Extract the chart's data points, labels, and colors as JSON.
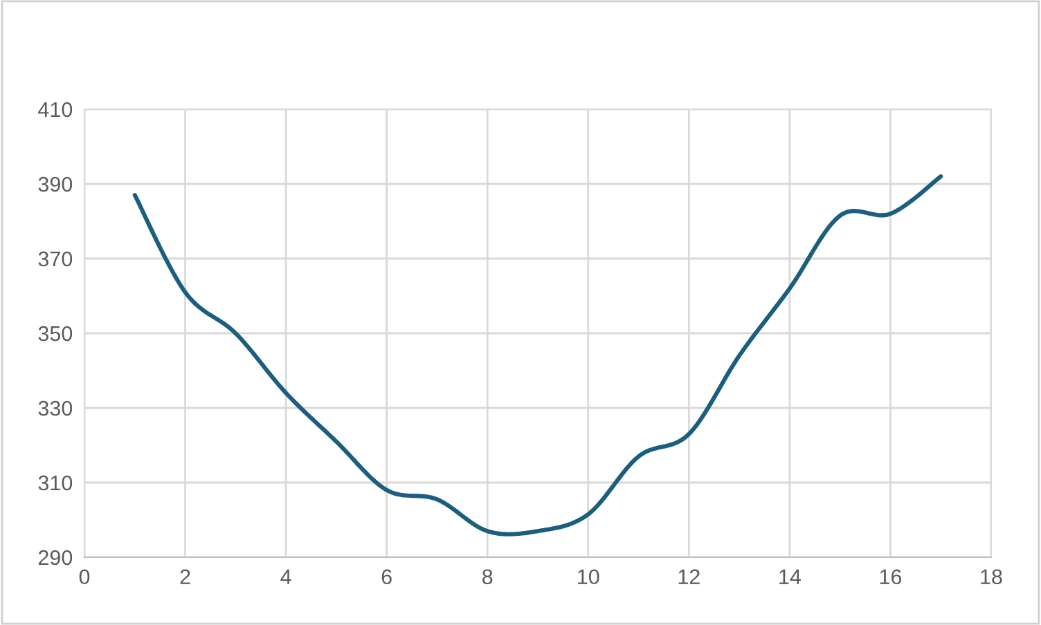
{
  "chart_data": {
    "type": "line",
    "x": [
      1,
      2,
      3,
      4,
      5,
      6,
      7,
      8,
      9,
      10,
      11,
      12,
      13,
      14,
      15,
      16,
      17
    ],
    "series": [
      {
        "color": "#1b5e7e",
        "values": [
          387,
          361,
          350,
          334,
          321,
          308,
          305.5,
          297,
          297,
          301.5,
          317,
          323,
          344,
          362,
          381.5,
          382,
          392
        ]
      }
    ],
    "xlim": [
      0,
      18
    ],
    "xticks": [
      0,
      2,
      4,
      6,
      8,
      10,
      12,
      14,
      16,
      18
    ],
    "ylim": [
      290,
      410
    ],
    "yticks": [
      290,
      310,
      330,
      350,
      370,
      390,
      410
    ],
    "grid": true,
    "marker": "none",
    "line_style": "solid"
  }
}
